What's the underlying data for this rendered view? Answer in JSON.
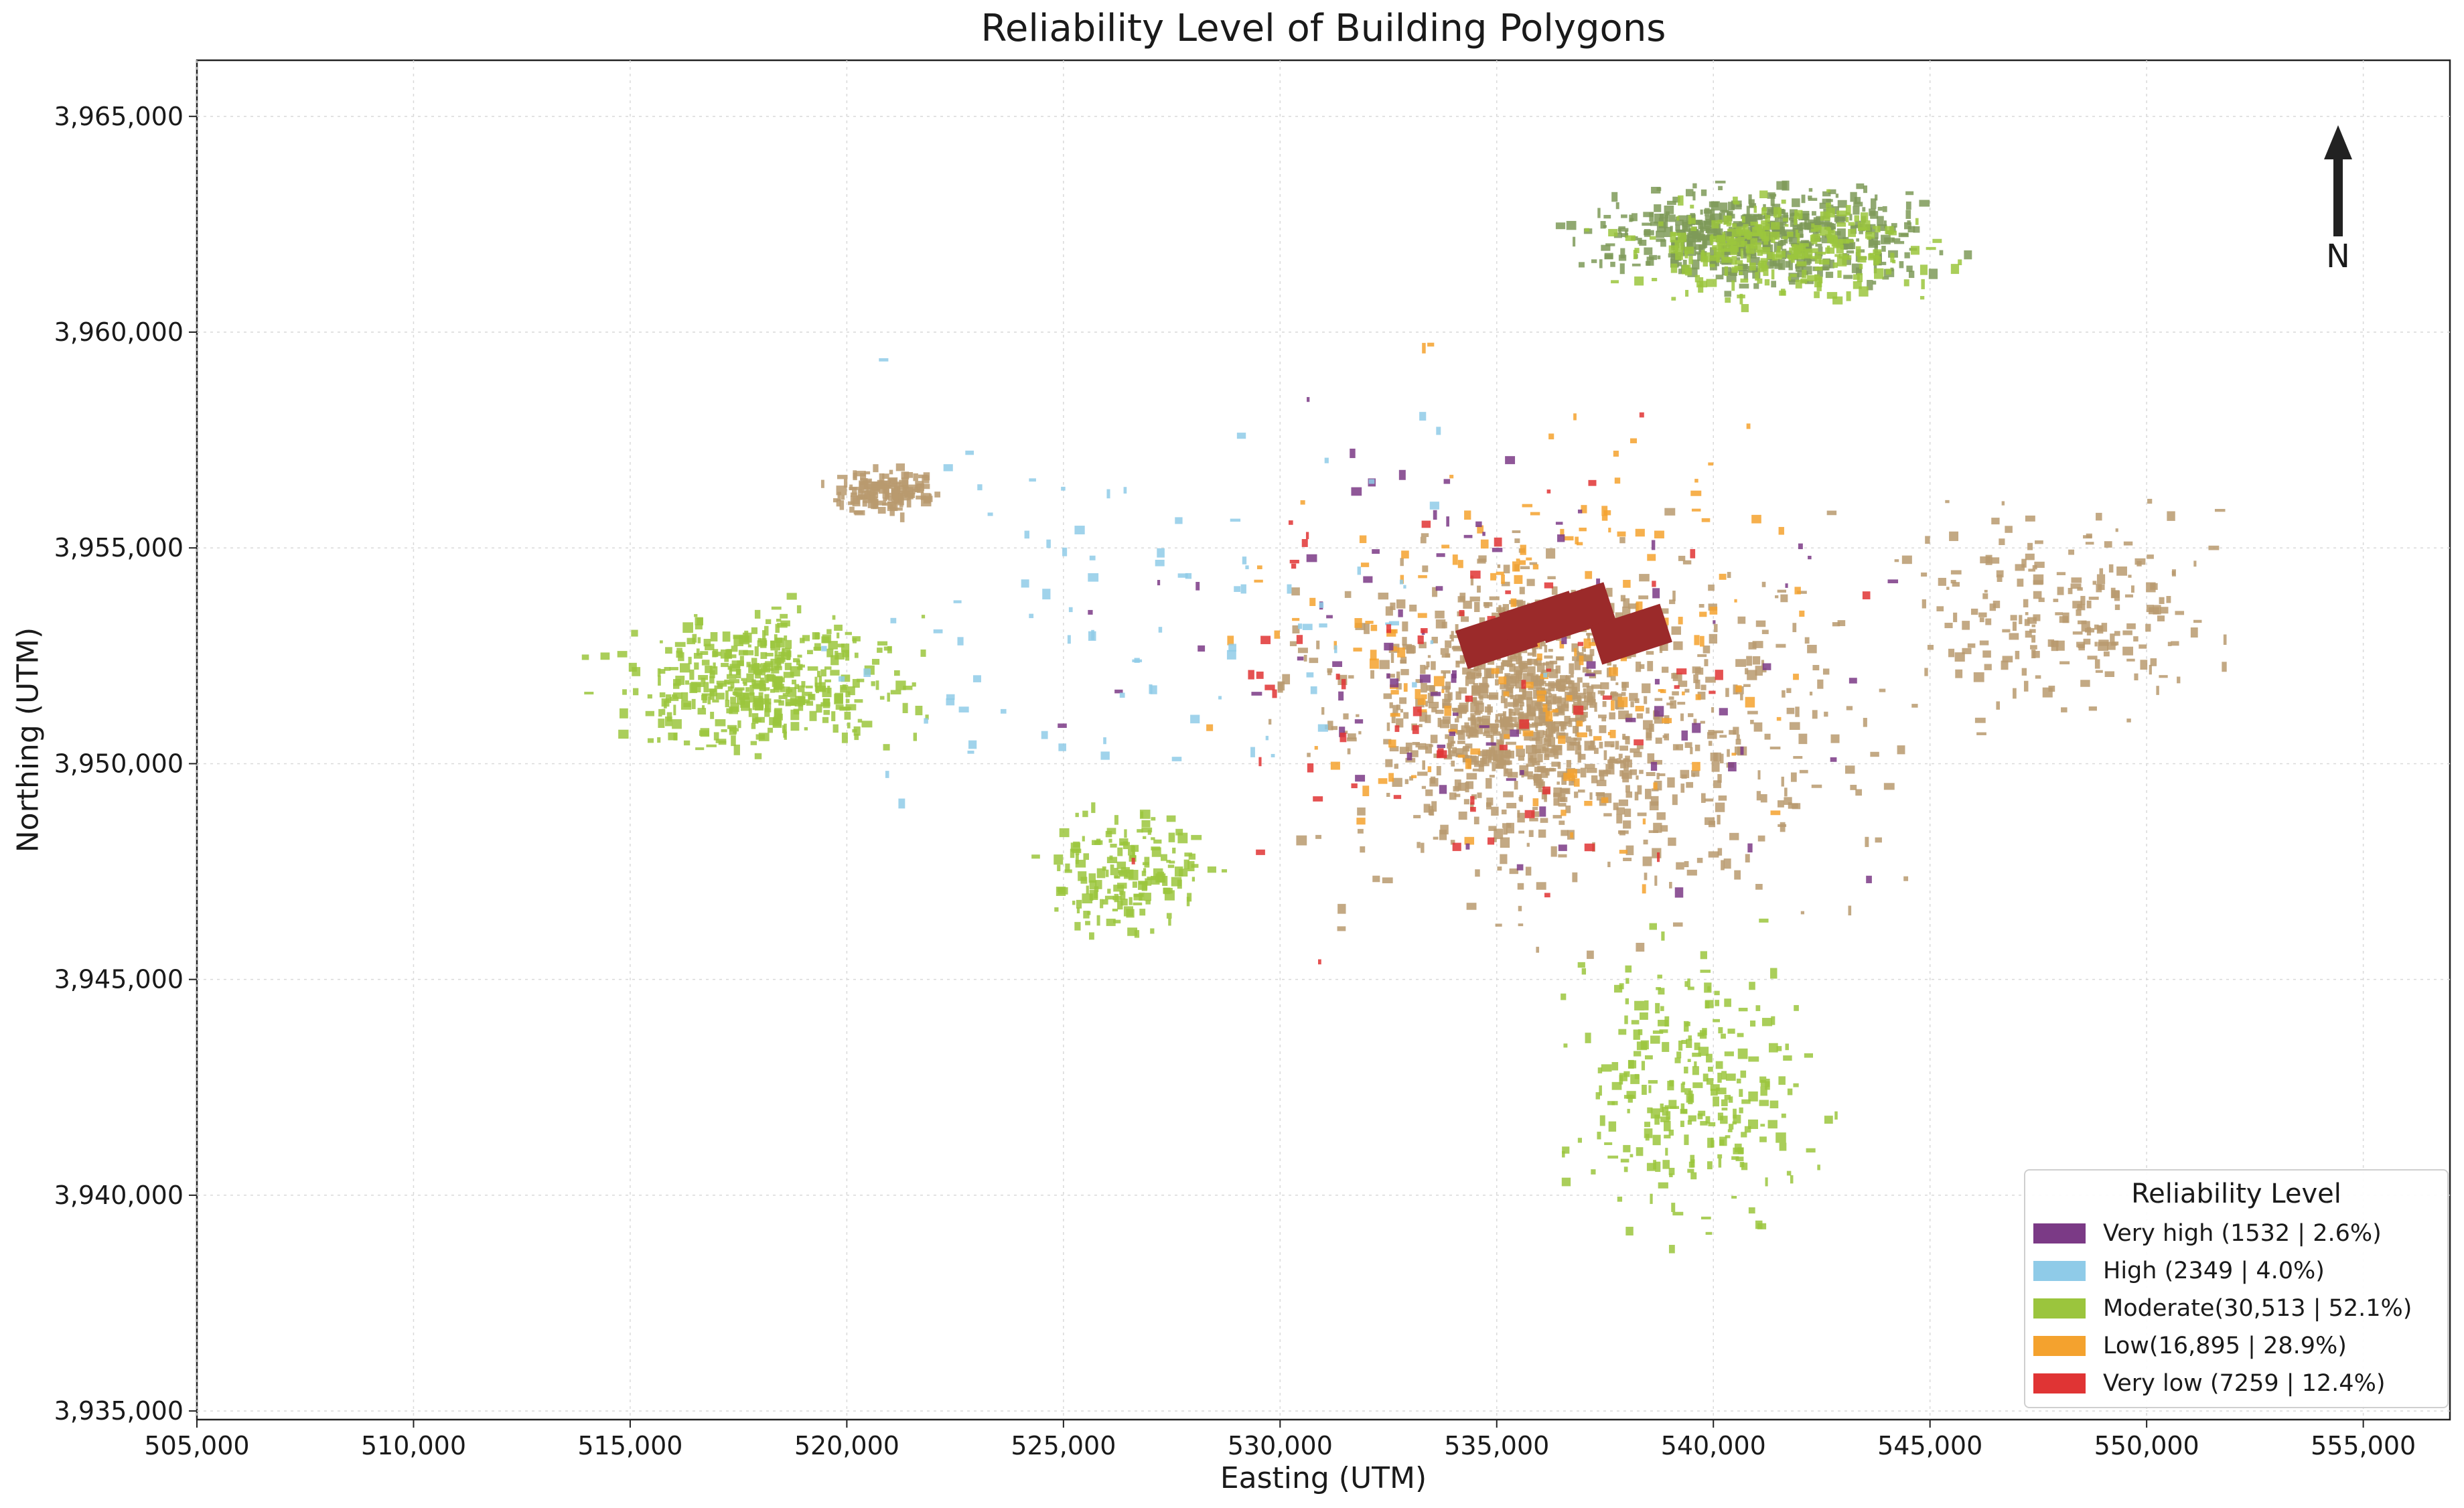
{
  "title": "Reliability Level of Building Polygons",
  "xlabel": "Easting (UTM)",
  "ylabel": "Northing (UTM)",
  "north_label": "N",
  "x_range": [
    505000,
    557000
  ],
  "y_range": [
    3934800,
    3966300
  ],
  "x_ticks": [
    {
      "value": 505000,
      "label": "505,000"
    },
    {
      "value": 510000,
      "label": "510,000"
    },
    {
      "value": 515000,
      "label": "515,000"
    },
    {
      "value": 520000,
      "label": "520,000"
    },
    {
      "value": 525000,
      "label": "525,000"
    },
    {
      "value": 530000,
      "label": "530,000"
    },
    {
      "value": 535000,
      "label": "535,000"
    },
    {
      "value": 540000,
      "label": "540,000"
    },
    {
      "value": 545000,
      "label": "545,000"
    },
    {
      "value": 550000,
      "label": "550,000"
    },
    {
      "value": 555000,
      "label": "555,000"
    }
  ],
  "y_ticks": [
    {
      "value": 3935000,
      "label": "3,935,000"
    },
    {
      "value": 3940000,
      "label": "3,940,000"
    },
    {
      "value": 3945000,
      "label": "3,945,000"
    },
    {
      "value": 3950000,
      "label": "3,950,000"
    },
    {
      "value": 3955000,
      "label": "3,955,000"
    },
    {
      "value": 3960000,
      "label": "3,960,000"
    },
    {
      "value": 3965000,
      "label": "3,965,000"
    }
  ],
  "legend": {
    "title": "Reliability Level",
    "placement": "lower-right",
    "items": [
      {
        "label": "Very high (1532 | 2.6%)",
        "color": "#7b3a86"
      },
      {
        "label": "High (2349 | 4.0%)",
        "color": "#8fcbe8"
      },
      {
        "label": "Moderate(30,513 | 52.1%)",
        "color": "#9bc53d"
      },
      {
        "label": "Low(16,895 | 28.9%)",
        "color": "#f4a22e"
      },
      {
        "label": "Very low (7259 | 12.4%)",
        "color": "#e03434"
      }
    ]
  },
  "colors": {
    "very_high": "#7b3a86",
    "high": "#8fcbe8",
    "moderate": "#9bc53d",
    "low": "#f4a22e",
    "very_low": "#e03434",
    "dark_red_cluster": "#9b2a2a",
    "tan_buildings": "#b89a6e",
    "olive_buildings": "#7e9a58"
  },
  "clusters": [
    {
      "id": "north-olive-dense",
      "easting": 541000,
      "northing": 3962300,
      "spread_e": 5200,
      "spread_n": 1500,
      "color": "olive_buildings",
      "count": 520
    },
    {
      "id": "north-moderate",
      "easting": 541500,
      "northing": 3962000,
      "spread_e": 5000,
      "spread_n": 1600,
      "color": "moderate",
      "count": 260
    },
    {
      "id": "west-moderate",
      "easting": 518000,
      "northing": 3952000,
      "spread_e": 4500,
      "spread_n": 2200,
      "color": "moderate",
      "count": 420
    },
    {
      "id": "west-tan-block",
      "easting": 520800,
      "northing": 3956400,
      "spread_e": 1800,
      "spread_n": 700,
      "color": "tan_buildings",
      "count": 140
    },
    {
      "id": "center-tan",
      "easting": 535500,
      "northing": 3951500,
      "spread_e": 3500,
      "spread_n": 3500,
      "color": "tan_buildings",
      "count": 520
    },
    {
      "id": "center-scatter",
      "easting": 537000,
      "northing": 3951000,
      "spread_e": 9000,
      "spread_n": 6000,
      "color": "tan_buildings",
      "count": 640
    },
    {
      "id": "south-moderate",
      "easting": 539500,
      "northing": 3942500,
      "spread_e": 4000,
      "spread_n": 4500,
      "color": "moderate",
      "count": 260
    },
    {
      "id": "east-scatter",
      "easting": 548000,
      "northing": 3953500,
      "spread_e": 5000,
      "spread_n": 3000,
      "color": "tan_buildings",
      "count": 200
    },
    {
      "id": "sw-moderate",
      "easting": 526500,
      "northing": 3947500,
      "spread_e": 2500,
      "spread_n": 2000,
      "color": "moderate",
      "count": 160
    },
    {
      "id": "low-scatter",
      "easting": 536000,
      "northing": 3953000,
      "spread_e": 9000,
      "spread_n": 7000,
      "color": "low",
      "count": 180
    },
    {
      "id": "very-high-scatter",
      "easting": 535000,
      "northing": 3953000,
      "spread_e": 12000,
      "spread_n": 8000,
      "color": "very_high",
      "count": 90
    },
    {
      "id": "high-scatter",
      "easting": 527000,
      "northing": 3954000,
      "spread_e": 12000,
      "spread_n": 6000,
      "color": "high",
      "count": 90
    },
    {
      "id": "very-low-scatter",
      "easting": 534000,
      "northing": 3952000,
      "spread_e": 10000,
      "spread_n": 8000,
      "color": "very_low",
      "count": 70
    }
  ],
  "dark_red_blocks": [
    {
      "easting": 535000,
      "northing": 3952900
    },
    {
      "easting": 536000,
      "northing": 3953300
    },
    {
      "easting": 536800,
      "northing": 3953500
    },
    {
      "easting": 538100,
      "northing": 3953000
    }
  ]
}
